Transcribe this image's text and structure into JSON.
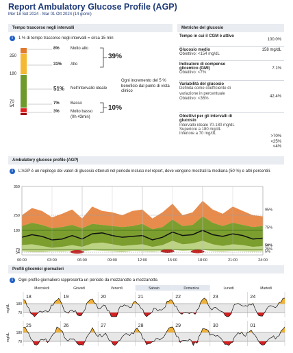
{
  "header": {
    "title": "Report Ambulatory Glucose Profile (AGP)",
    "subtitle": "Mer 18 Set 2024 - Mar 01 Ott 2024 (14 giorni)"
  },
  "tir": {
    "heading": "Tempo trascorso negli intervalli",
    "note": "1 % di tempo trascorso negli intervalli = circa 15 min",
    "axis_labels": [
      "250",
      "180",
      "70",
      "54"
    ],
    "rows": [
      {
        "pct": "8%",
        "label": "Molto alto",
        "color": "#e07a2c",
        "fraction": 0.08
      },
      {
        "pct": "31%",
        "label": "Alto",
        "color": "#f5b833",
        "fraction": 0.31
      },
      {
        "pct": "51%",
        "label": "Nell'intervallo ideale",
        "color": "#6e9a2c",
        "fraction": 0.51
      },
      {
        "pct": "7%",
        "label": "Basso",
        "color": "#e02020",
        "fraction": 0.07
      },
      {
        "pct": "3%",
        "label": "Molto basso",
        "sublabel": "(0h 43min)",
        "color": "#9c1010",
        "fraction": 0.03
      }
    ],
    "high_total": "39%",
    "low_total": "10%",
    "benefit_note": "Ogni incremento del 5 % beneficio dal punto di vista clinico"
  },
  "metrics": {
    "heading": "Metriche del glucosio",
    "items": [
      {
        "label": "Tempo in cui il CGM è attivo",
        "target": "",
        "value": "100.0%"
      },
      {
        "label": "Glucosio medio",
        "target": "Obiettivo: <154 mg/dL",
        "value": "158 mg/dL"
      },
      {
        "label": "Indicatore di compenso glicemico (GMI)",
        "target": "Obiettivo: <7%",
        "value": "7.1%"
      },
      {
        "label": "Variabilità del glucosio",
        "target": "Definita come coefficiente di variazione in percentuale",
        "target2": "Obiettivo: <36%",
        "value": "42.4%"
      }
    ],
    "targets_heading": "Obiettivi per gli intervalli di glucosio",
    "targets": [
      {
        "label": "Intervallo ideale 70-180 mg/dL",
        "value": ">70%"
      },
      {
        "label": "Superiore a 180 mg/dL",
        "value": "<25%"
      },
      {
        "label": "Inferiore a 70 mg/dL",
        "value": "<4%"
      }
    ]
  },
  "agp": {
    "heading": "Ambulatory glucose profile (AGP)",
    "description": "L'AGP è un riepilogo dei valori di glucosio ottenuti nel periodo incluso nel report, dove vengono mostrati la mediana (50 %) e altri percentili.",
    "y_ticks": [
      "350",
      "250",
      "180",
      "70",
      "54"
    ],
    "x_ticks": [
      "00:00",
      "03:00",
      "06:00",
      "09:00",
      "12:00",
      "15:00",
      "18:00",
      "21:00",
      "24:00"
    ],
    "percentile_labels": [
      "95%",
      "75%",
      "50%",
      "25%",
      "5%"
    ],
    "colors": {
      "p95": "#e5803a",
      "p75": "#f6b93b",
      "median": "#111111",
      "iqr": "#6e9a2c",
      "outer_low": "#b8cf7a",
      "low": "#c42020"
    },
    "chart_data": {
      "type": "area",
      "x": [
        0,
        1,
        2,
        3,
        4,
        5,
        6,
        7,
        8,
        9,
        10,
        11,
        12,
        13,
        14,
        15,
        16,
        17,
        18,
        19,
        20,
        21,
        22,
        23,
        24
      ],
      "ylim": [
        0,
        350
      ],
      "series": [
        {
          "name": "95%",
          "values": [
            250,
            275,
            265,
            240,
            255,
            270,
            235,
            280,
            265,
            260,
            250,
            265,
            270,
            235,
            260,
            290,
            250,
            260,
            300,
            270,
            255,
            280,
            265,
            250,
            245
          ]
        },
        {
          "name": "75%",
          "values": [
            200,
            215,
            205,
            190,
            195,
            205,
            190,
            210,
            205,
            200,
            195,
            200,
            210,
            185,
            195,
            230,
            200,
            205,
            245,
            215,
            200,
            215,
            205,
            195,
            200
          ]
        },
        {
          "name": "50%",
          "values": [
            140,
            155,
            145,
            125,
            130,
            150,
            130,
            160,
            165,
            150,
            140,
            145,
            150,
            125,
            140,
            170,
            150,
            155,
            180,
            155,
            145,
            160,
            150,
            130,
            135
          ]
        },
        {
          "name": "25%",
          "values": [
            95,
            100,
            90,
            80,
            85,
            95,
            85,
            105,
            110,
            100,
            90,
            95,
            100,
            85,
            95,
            120,
            100,
            105,
            120,
            100,
            90,
            100,
            95,
            85,
            90
          ]
        },
        {
          "name": "5%",
          "values": [
            60,
            55,
            55,
            60,
            58,
            62,
            60,
            65,
            62,
            60,
            55,
            62,
            60,
            58,
            62,
            68,
            62,
            64,
            68,
            60,
            58,
            62,
            60,
            58,
            60
          ]
        }
      ]
    }
  },
  "daily": {
    "heading": "Profili glicemici giornalieri",
    "description": "Ogni profilo giornaliero rappresenta un periodo da mezzanotte a mezzanotte.",
    "day_names": [
      "Mercoledì",
      "Giovedì",
      "Venerdì",
      "Sabato",
      "Domenica",
      "Lunedì",
      "Martedì"
    ],
    "week1_dates": [
      "18",
      "19",
      "20",
      "21",
      "22",
      "23",
      "24"
    ],
    "week2_dates": [
      "25",
      "26",
      "27",
      "28",
      "29",
      "30",
      "01"
    ],
    "ylabel": "mg/dL",
    "y_ticks": [
      "180",
      "70"
    ]
  }
}
